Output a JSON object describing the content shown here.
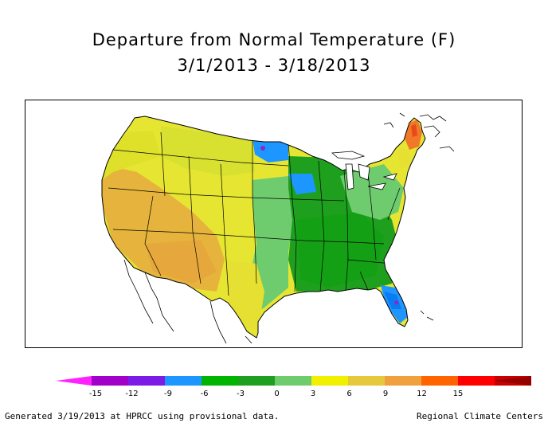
{
  "title": {
    "line1": "Departure from Normal Temperature (F)",
    "line2": "3/1/2013 - 3/18/2013"
  },
  "legend": {
    "colors": [
      "#ff22ff",
      "#a000c8",
      "#7a1ce6",
      "#1e96ff",
      "#00b400",
      "#1f9f1f",
      "#6ecc6e",
      "#f0f000",
      "#e6c83c",
      "#f0a03c",
      "#ff6400",
      "#ff0000",
      "#c80000",
      "#960000"
    ],
    "tick_labels": [
      "-15",
      "-12",
      "-9",
      "-6",
      "-3",
      "0",
      "3",
      "6",
      "9",
      "12",
      "15"
    ]
  },
  "footer": {
    "left": "Generated 3/19/2013 at HPRCC using provisional data.",
    "right": "Regional Climate Centers"
  }
}
